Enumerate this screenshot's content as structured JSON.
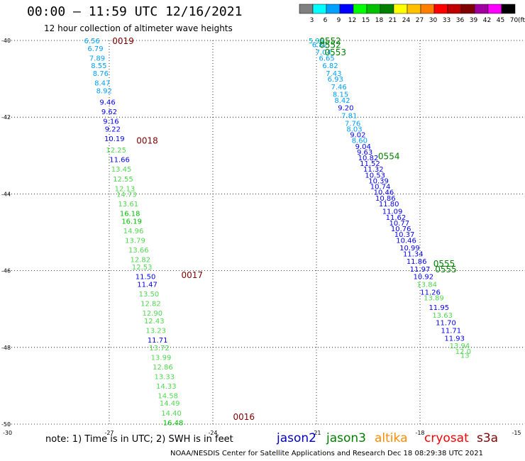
{
  "header": {
    "title": "00:00 – 11:59 UTC 12/16/2021",
    "subtitle": "12 hour collection of altimeter wave heights"
  },
  "legend": {
    "unit": "(ft)",
    "bins": [
      {
        "label": "3",
        "color": "#808080"
      },
      {
        "label": "6",
        "color": "#00ffff"
      },
      {
        "label": "9",
        "color": "#00a0ff"
      },
      {
        "label": "12",
        "color": "#0000ff"
      },
      {
        "label": "15",
        "color": "#00ff00"
      },
      {
        "label": "18",
        "color": "#00c000"
      },
      {
        "label": "21",
        "color": "#008000"
      },
      {
        "label": "24",
        "color": "#ffff00"
      },
      {
        "label": "27",
        "color": "#ffc000"
      },
      {
        "label": "30",
        "color": "#ff8000"
      },
      {
        "label": "33",
        "color": "#ff0000"
      },
      {
        "label": "36",
        "color": "#c00000"
      },
      {
        "label": "39",
        "color": "#800000"
      },
      {
        "label": "42",
        "color": "#a000a0"
      },
      {
        "label": "45",
        "color": "#ff00ff"
      },
      {
        "label": "70",
        "color": "#000000"
      }
    ]
  },
  "map": {
    "lat_labels": [
      "-40",
      "-42",
      "-44",
      "-46",
      "-48",
      "-50"
    ],
    "lon_labels": [
      "-30",
      "-27",
      "-24",
      "-21",
      "-18",
      "-15"
    ]
  },
  "chart_data": {
    "type": "scatter",
    "lon_range": [
      -30,
      -15
    ],
    "lat_range": [
      -50,
      -40
    ],
    "grid": true,
    "tracks": [
      {
        "color_key": "wave height bins",
        "time_labels": [
          {
            "text": "0019",
            "lat": -40.0,
            "lon": -26.6
          },
          {
            "text": "0018",
            "lat": -42.6,
            "lon": -25.9
          },
          {
            "text": "0017",
            "lat": -46.1,
            "lon": -24.6
          },
          {
            "text": "0016",
            "lat": -49.8,
            "lon": -23.1
          }
        ],
        "points": [
          {
            "lat": -40.0,
            "lon": -27.5,
            "v": "6.56"
          },
          {
            "lat": -40.2,
            "lon": -27.4,
            "v": "6.79"
          },
          {
            "lat": -40.45,
            "lon": -27.35,
            "v": "7.89"
          },
          {
            "lat": -40.65,
            "lon": -27.3,
            "v": "8.55"
          },
          {
            "lat": -40.85,
            "lon": -27.25,
            "v": "8.76"
          },
          {
            "lat": -41.1,
            "lon": -27.2,
            "v": "8.47"
          },
          {
            "lat": -41.3,
            "lon": -27.15,
            "v": "8.92"
          },
          {
            "lat": -41.6,
            "lon": -27.05,
            "v": "9.46"
          },
          {
            "lat": -41.85,
            "lon": -27.0,
            "v": "9.62"
          },
          {
            "lat": -42.1,
            "lon": -26.95,
            "v": "9.16"
          },
          {
            "lat": -42.3,
            "lon": -26.9,
            "v": "9.22"
          },
          {
            "lat": -42.55,
            "lon": -26.85,
            "v": "10.19"
          },
          {
            "lat": -42.85,
            "lon": -26.8,
            "v": "12.25"
          },
          {
            "lat": -43.1,
            "lon": -26.7,
            "v": "11.66"
          },
          {
            "lat": -43.35,
            "lon": -26.65,
            "v": "13.45"
          },
          {
            "lat": -43.6,
            "lon": -26.6,
            "v": "12.55"
          },
          {
            "lat": -43.85,
            "lon": -26.55,
            "v": "12.13"
          },
          {
            "lat": -44.0,
            "lon": -26.5,
            "v": "14.73"
          },
          {
            "lat": -44.25,
            "lon": -26.45,
            "v": "13.61"
          },
          {
            "lat": -44.5,
            "lon": -26.4,
            "v": "16.18"
          },
          {
            "lat": -44.7,
            "lon": -26.35,
            "v": "16.19"
          },
          {
            "lat": -44.95,
            "lon": -26.3,
            "v": "14.96"
          },
          {
            "lat": -45.2,
            "lon": -26.25,
            "v": "13.79"
          },
          {
            "lat": -45.45,
            "lon": -26.15,
            "v": "13.66"
          },
          {
            "lat": -45.7,
            "lon": -26.1,
            "v": "12.82"
          },
          {
            "lat": -45.9,
            "lon": -26.05,
            "v": "12.53"
          },
          {
            "lat": -46.15,
            "lon": -25.95,
            "v": "11.50"
          },
          {
            "lat": -46.35,
            "lon": -25.9,
            "v": "11.47"
          },
          {
            "lat": -46.6,
            "lon": -25.85,
            "v": "13.50"
          },
          {
            "lat": -46.85,
            "lon": -25.8,
            "v": "12.82"
          },
          {
            "lat": -47.1,
            "lon": -25.75,
            "v": "12.90"
          },
          {
            "lat": -47.3,
            "lon": -25.7,
            "v": "12.43"
          },
          {
            "lat": -47.55,
            "lon": -25.65,
            "v": "13.23"
          },
          {
            "lat": -47.8,
            "lon": -25.6,
            "v": "11.71"
          },
          {
            "lat": -48.0,
            "lon": -25.55,
            "v": "13.72"
          },
          {
            "lat": -48.25,
            "lon": -25.5,
            "v": "13.99"
          },
          {
            "lat": -48.5,
            "lon": -25.45,
            "v": "12.86"
          },
          {
            "lat": -48.75,
            "lon": -25.4,
            "v": "13.33"
          },
          {
            "lat": -49.0,
            "lon": -25.35,
            "v": "14.33"
          },
          {
            "lat": -49.25,
            "lon": -25.3,
            "v": "14.58"
          },
          {
            "lat": -49.45,
            "lon": -25.25,
            "v": "14.49"
          },
          {
            "lat": -49.7,
            "lon": -25.2,
            "v": "14.40"
          },
          {
            "lat": -49.95,
            "lon": -25.15,
            "v": "16.48"
          }
        ]
      },
      {
        "color_key": "wave height bins",
        "time_labels": [
          {
            "text": "0552",
            "lat": -40.0,
            "lon": -20.6
          },
          {
            "text": "0552",
            "lat": -40.1,
            "lon": -20.6
          },
          {
            "text": "0553",
            "lat": -40.3,
            "lon": -20.45
          },
          {
            "text": "0554",
            "lat": -43.0,
            "lon": -18.9
          },
          {
            "text": "0555",
            "lat": -45.8,
            "lon": -17.3
          },
          {
            "text": "0555",
            "lat": -45.95,
            "lon": -17.25
          }
        ],
        "points": [
          {
            "lat": -40.0,
            "lon": -21.0,
            "v": "5.95"
          },
          {
            "lat": -40.1,
            "lon": -20.9,
            "v": "6.82"
          },
          {
            "lat": -40.3,
            "lon": -20.8,
            "v": "7.04"
          },
          {
            "lat": -40.45,
            "lon": -20.7,
            "v": "6.65"
          },
          {
            "lat": -40.65,
            "lon": -20.6,
            "v": "6.82"
          },
          {
            "lat": -40.85,
            "lon": -20.5,
            "v": "7.43"
          },
          {
            "lat": -41.0,
            "lon": -20.45,
            "v": "6.93"
          },
          {
            "lat": -41.2,
            "lon": -20.35,
            "v": "7.46"
          },
          {
            "lat": -41.4,
            "lon": -20.3,
            "v": "8.15"
          },
          {
            "lat": -41.55,
            "lon": -20.25,
            "v": "8.42"
          },
          {
            "lat": -41.75,
            "lon": -20.15,
            "v": "9.20"
          },
          {
            "lat": -41.95,
            "lon": -20.05,
            "v": "7.81"
          },
          {
            "lat": -42.15,
            "lon": -19.95,
            "v": "7.76"
          },
          {
            "lat": -42.3,
            "lon": -19.9,
            "v": "8.03"
          },
          {
            "lat": -42.45,
            "lon": -19.8,
            "v": "9.02"
          },
          {
            "lat": -42.6,
            "lon": -19.75,
            "v": "8.60"
          },
          {
            "lat": -42.75,
            "lon": -19.65,
            "v": "9.04"
          },
          {
            "lat": -42.9,
            "lon": -19.6,
            "v": "9.63"
          },
          {
            "lat": -43.05,
            "lon": -19.5,
            "v": "10.82"
          },
          {
            "lat": -43.2,
            "lon": -19.45,
            "v": "11.52"
          },
          {
            "lat": -43.35,
            "lon": -19.35,
            "v": "11.32"
          },
          {
            "lat": -43.5,
            "lon": -19.3,
            "v": "10.53"
          },
          {
            "lat": -43.65,
            "lon": -19.2,
            "v": "10.39"
          },
          {
            "lat": -43.8,
            "lon": -19.15,
            "v": "10.74"
          },
          {
            "lat": -43.95,
            "lon": -19.05,
            "v": "10.46"
          },
          {
            "lat": -44.1,
            "lon": -19.0,
            "v": "10.86"
          },
          {
            "lat": -44.25,
            "lon": -18.9,
            "v": "11.80"
          },
          {
            "lat": -44.45,
            "lon": -18.8,
            "v": "11.09"
          },
          {
            "lat": -44.6,
            "lon": -18.7,
            "v": "11.62"
          },
          {
            "lat": -44.75,
            "lon": -18.6,
            "v": "10.77"
          },
          {
            "lat": -44.9,
            "lon": -18.55,
            "v": "10.76"
          },
          {
            "lat": -45.05,
            "lon": -18.45,
            "v": "10.37"
          },
          {
            "lat": -45.2,
            "lon": -18.4,
            "v": "10.46"
          },
          {
            "lat": -45.4,
            "lon": -18.3,
            "v": "10.99"
          },
          {
            "lat": -45.55,
            "lon": -18.2,
            "v": "11.34"
          },
          {
            "lat": -45.75,
            "lon": -18.1,
            "v": "11.86"
          },
          {
            "lat": -45.95,
            "lon": -18.0,
            "v": "11.97"
          },
          {
            "lat": -46.15,
            "lon": -17.9,
            "v": "10.92"
          },
          {
            "lat": -46.35,
            "lon": -17.8,
            "v": "13.84"
          },
          {
            "lat": -46.55,
            "lon": -17.7,
            "v": "11.26"
          },
          {
            "lat": -46.7,
            "lon": -17.6,
            "v": "13.89"
          },
          {
            "lat": -46.95,
            "lon": -17.45,
            "v": "11.95"
          },
          {
            "lat": -47.15,
            "lon": -17.35,
            "v": "13.63"
          },
          {
            "lat": -47.35,
            "lon": -17.25,
            "v": "11.70"
          },
          {
            "lat": -47.55,
            "lon": -17.1,
            "v": "11.71"
          },
          {
            "lat": -47.75,
            "lon": -17.0,
            "v": "11.93"
          },
          {
            "lat": -47.95,
            "lon": -16.85,
            "v": "13.94"
          },
          {
            "lat": -48.1,
            "lon": -16.75,
            "v": "12.0"
          },
          {
            "lat": -48.2,
            "lon": -16.7,
            "v": "13"
          }
        ]
      }
    ]
  },
  "footer": {
    "note": "note: 1) Time is in UTC; 2) SWH is in feet",
    "credit": "NOAA/NESDIS Center for Satellite Applications and Research    Dec 18 08:29:38 UTC 2021",
    "satellites": [
      {
        "name": "jason2",
        "color": "#0000c8"
      },
      {
        "name": "jason3",
        "color": "#008000"
      },
      {
        "name": "altika",
        "color": "#ff8c00"
      },
      {
        "name": "cryosat",
        "color": "#ff0000"
      },
      {
        "name": "s3a",
        "color": "#800000"
      }
    ]
  }
}
